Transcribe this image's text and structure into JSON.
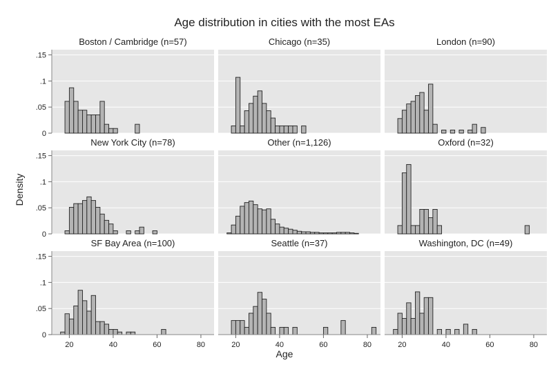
{
  "chart_data": {
    "type": "bar",
    "title": "Age distribution in cities with the most EAs",
    "xlabel": "Age",
    "ylabel": "Density",
    "xlim": [
      12,
      86
    ],
    "ylim": [
      0,
      0.16
    ],
    "x_ticks": [
      20,
      40,
      60,
      80
    ],
    "y_ticks": [
      {
        "v": 0,
        "label": "0"
      },
      {
        "v": 0.05,
        "label": ".05"
      },
      {
        "v": 0.1,
        "label": ".1"
      },
      {
        "v": 0.15,
        "label": ".15"
      }
    ],
    "bin_width": 2,
    "grid": true,
    "colors": {
      "panel_bg": "#e6e6e6",
      "bar_fill": "#b4b4b4",
      "bar_stroke": "#222222",
      "grid": "#ffffff"
    },
    "panels": [
      {
        "name": "Boston / Cambridge (n=57)",
        "bins": [
          [
            18,
            0.061
          ],
          [
            20,
            0.087
          ],
          [
            22,
            0.061
          ],
          [
            24,
            0.044
          ],
          [
            26,
            0.044
          ],
          [
            28,
            0.035
          ],
          [
            30,
            0.035
          ],
          [
            32,
            0.035
          ],
          [
            34,
            0.061
          ],
          [
            36,
            0.017
          ],
          [
            38,
            0.009
          ],
          [
            40,
            0.009
          ],
          [
            50,
            0.017
          ]
        ]
      },
      {
        "name": "Chicago (n=35)",
        "bins": [
          [
            18,
            0.014
          ],
          [
            20,
            0.107
          ],
          [
            22,
            0.014
          ],
          [
            24,
            0.043
          ],
          [
            26,
            0.057
          ],
          [
            28,
            0.071
          ],
          [
            30,
            0.081
          ],
          [
            32,
            0.057
          ],
          [
            34,
            0.043
          ],
          [
            36,
            0.029
          ],
          [
            38,
            0.014
          ],
          [
            40,
            0.014
          ],
          [
            42,
            0.014
          ],
          [
            44,
            0.014
          ],
          [
            46,
            0.014
          ],
          [
            50,
            0.014
          ]
        ]
      },
      {
        "name": "London (n=90)",
        "bins": [
          [
            18,
            0.028
          ],
          [
            20,
            0.044
          ],
          [
            22,
            0.056
          ],
          [
            24,
            0.061
          ],
          [
            26,
            0.072
          ],
          [
            28,
            0.078
          ],
          [
            30,
            0.044
          ],
          [
            32,
            0.094
          ],
          [
            34,
            0.017
          ],
          [
            38,
            0.006
          ],
          [
            42,
            0.006
          ],
          [
            46,
            0.006
          ],
          [
            50,
            0.006
          ],
          [
            52,
            0.017
          ],
          [
            56,
            0.011
          ]
        ]
      },
      {
        "name": "New York City (n=78)",
        "bins": [
          [
            18,
            0.006
          ],
          [
            20,
            0.051
          ],
          [
            22,
            0.058
          ],
          [
            24,
            0.058
          ],
          [
            26,
            0.064
          ],
          [
            28,
            0.071
          ],
          [
            30,
            0.064
          ],
          [
            32,
            0.051
          ],
          [
            34,
            0.038
          ],
          [
            36,
            0.026
          ],
          [
            38,
            0.019
          ],
          [
            40,
            0.006
          ],
          [
            46,
            0.006
          ],
          [
            50,
            0.006
          ],
          [
            52,
            0.013
          ],
          [
            58,
            0.006
          ]
        ]
      },
      {
        "name": "Other (n=1,126)",
        "bins": [
          [
            16,
            0.002
          ],
          [
            18,
            0.017
          ],
          [
            20,
            0.034
          ],
          [
            22,
            0.053
          ],
          [
            24,
            0.06
          ],
          [
            26,
            0.063
          ],
          [
            28,
            0.056
          ],
          [
            30,
            0.048
          ],
          [
            32,
            0.046
          ],
          [
            34,
            0.048
          ],
          [
            36,
            0.028
          ],
          [
            38,
            0.019
          ],
          [
            40,
            0.013
          ],
          [
            42,
            0.011
          ],
          [
            44,
            0.009
          ],
          [
            46,
            0.007
          ],
          [
            48,
            0.005
          ],
          [
            50,
            0.004
          ],
          [
            52,
            0.004
          ],
          [
            54,
            0.003
          ],
          [
            56,
            0.003
          ],
          [
            58,
            0.002
          ],
          [
            60,
            0.002
          ],
          [
            62,
            0.002
          ],
          [
            64,
            0.002
          ],
          [
            66,
            0.003
          ],
          [
            68,
            0.003
          ],
          [
            70,
            0.003
          ],
          [
            72,
            0.002
          ],
          [
            74,
            0.001
          ]
        ]
      },
      {
        "name": "Oxford (n=32)",
        "bins": [
          [
            18,
            0.016
          ],
          [
            20,
            0.117
          ],
          [
            22,
            0.133
          ],
          [
            24,
            0.016
          ],
          [
            26,
            0.016
          ],
          [
            28,
            0.047
          ],
          [
            30,
            0.047
          ],
          [
            32,
            0.031
          ],
          [
            34,
            0.047
          ],
          [
            36,
            0.016
          ],
          [
            76,
            0.016
          ]
        ]
      },
      {
        "name": "SF Bay Area (n=100)",
        "bins": [
          [
            16,
            0.005
          ],
          [
            18,
            0.04
          ],
          [
            20,
            0.03
          ],
          [
            22,
            0.055
          ],
          [
            24,
            0.085
          ],
          [
            26,
            0.065
          ],
          [
            28,
            0.045
          ],
          [
            30,
            0.075
          ],
          [
            32,
            0.025
          ],
          [
            34,
            0.025
          ],
          [
            36,
            0.02
          ],
          [
            38,
            0.01
          ],
          [
            40,
            0.01
          ],
          [
            42,
            0.005
          ],
          [
            46,
            0.005
          ],
          [
            48,
            0.005
          ],
          [
            62,
            0.01
          ]
        ]
      },
      {
        "name": "Seattle (n=37)",
        "bins": [
          [
            18,
            0.027
          ],
          [
            20,
            0.027
          ],
          [
            22,
            0.027
          ],
          [
            24,
            0.014
          ],
          [
            26,
            0.041
          ],
          [
            28,
            0.054
          ],
          [
            30,
            0.081
          ],
          [
            32,
            0.068
          ],
          [
            34,
            0.041
          ],
          [
            36,
            0.014
          ],
          [
            40,
            0.014
          ],
          [
            42,
            0.014
          ],
          [
            46,
            0.014
          ],
          [
            60,
            0.014
          ],
          [
            68,
            0.027
          ],
          [
            82,
            0.014
          ]
        ]
      },
      {
        "name": "Washington, DC (n=49)",
        "bins": [
          [
            16,
            0.01
          ],
          [
            18,
            0.041
          ],
          [
            20,
            0.031
          ],
          [
            22,
            0.061
          ],
          [
            24,
            0.031
          ],
          [
            26,
            0.082
          ],
          [
            28,
            0.041
          ],
          [
            30,
            0.071
          ],
          [
            32,
            0.071
          ],
          [
            36,
            0.01
          ],
          [
            40,
            0.01
          ],
          [
            44,
            0.01
          ],
          [
            48,
            0.02
          ],
          [
            52,
            0.01
          ]
        ]
      }
    ]
  }
}
